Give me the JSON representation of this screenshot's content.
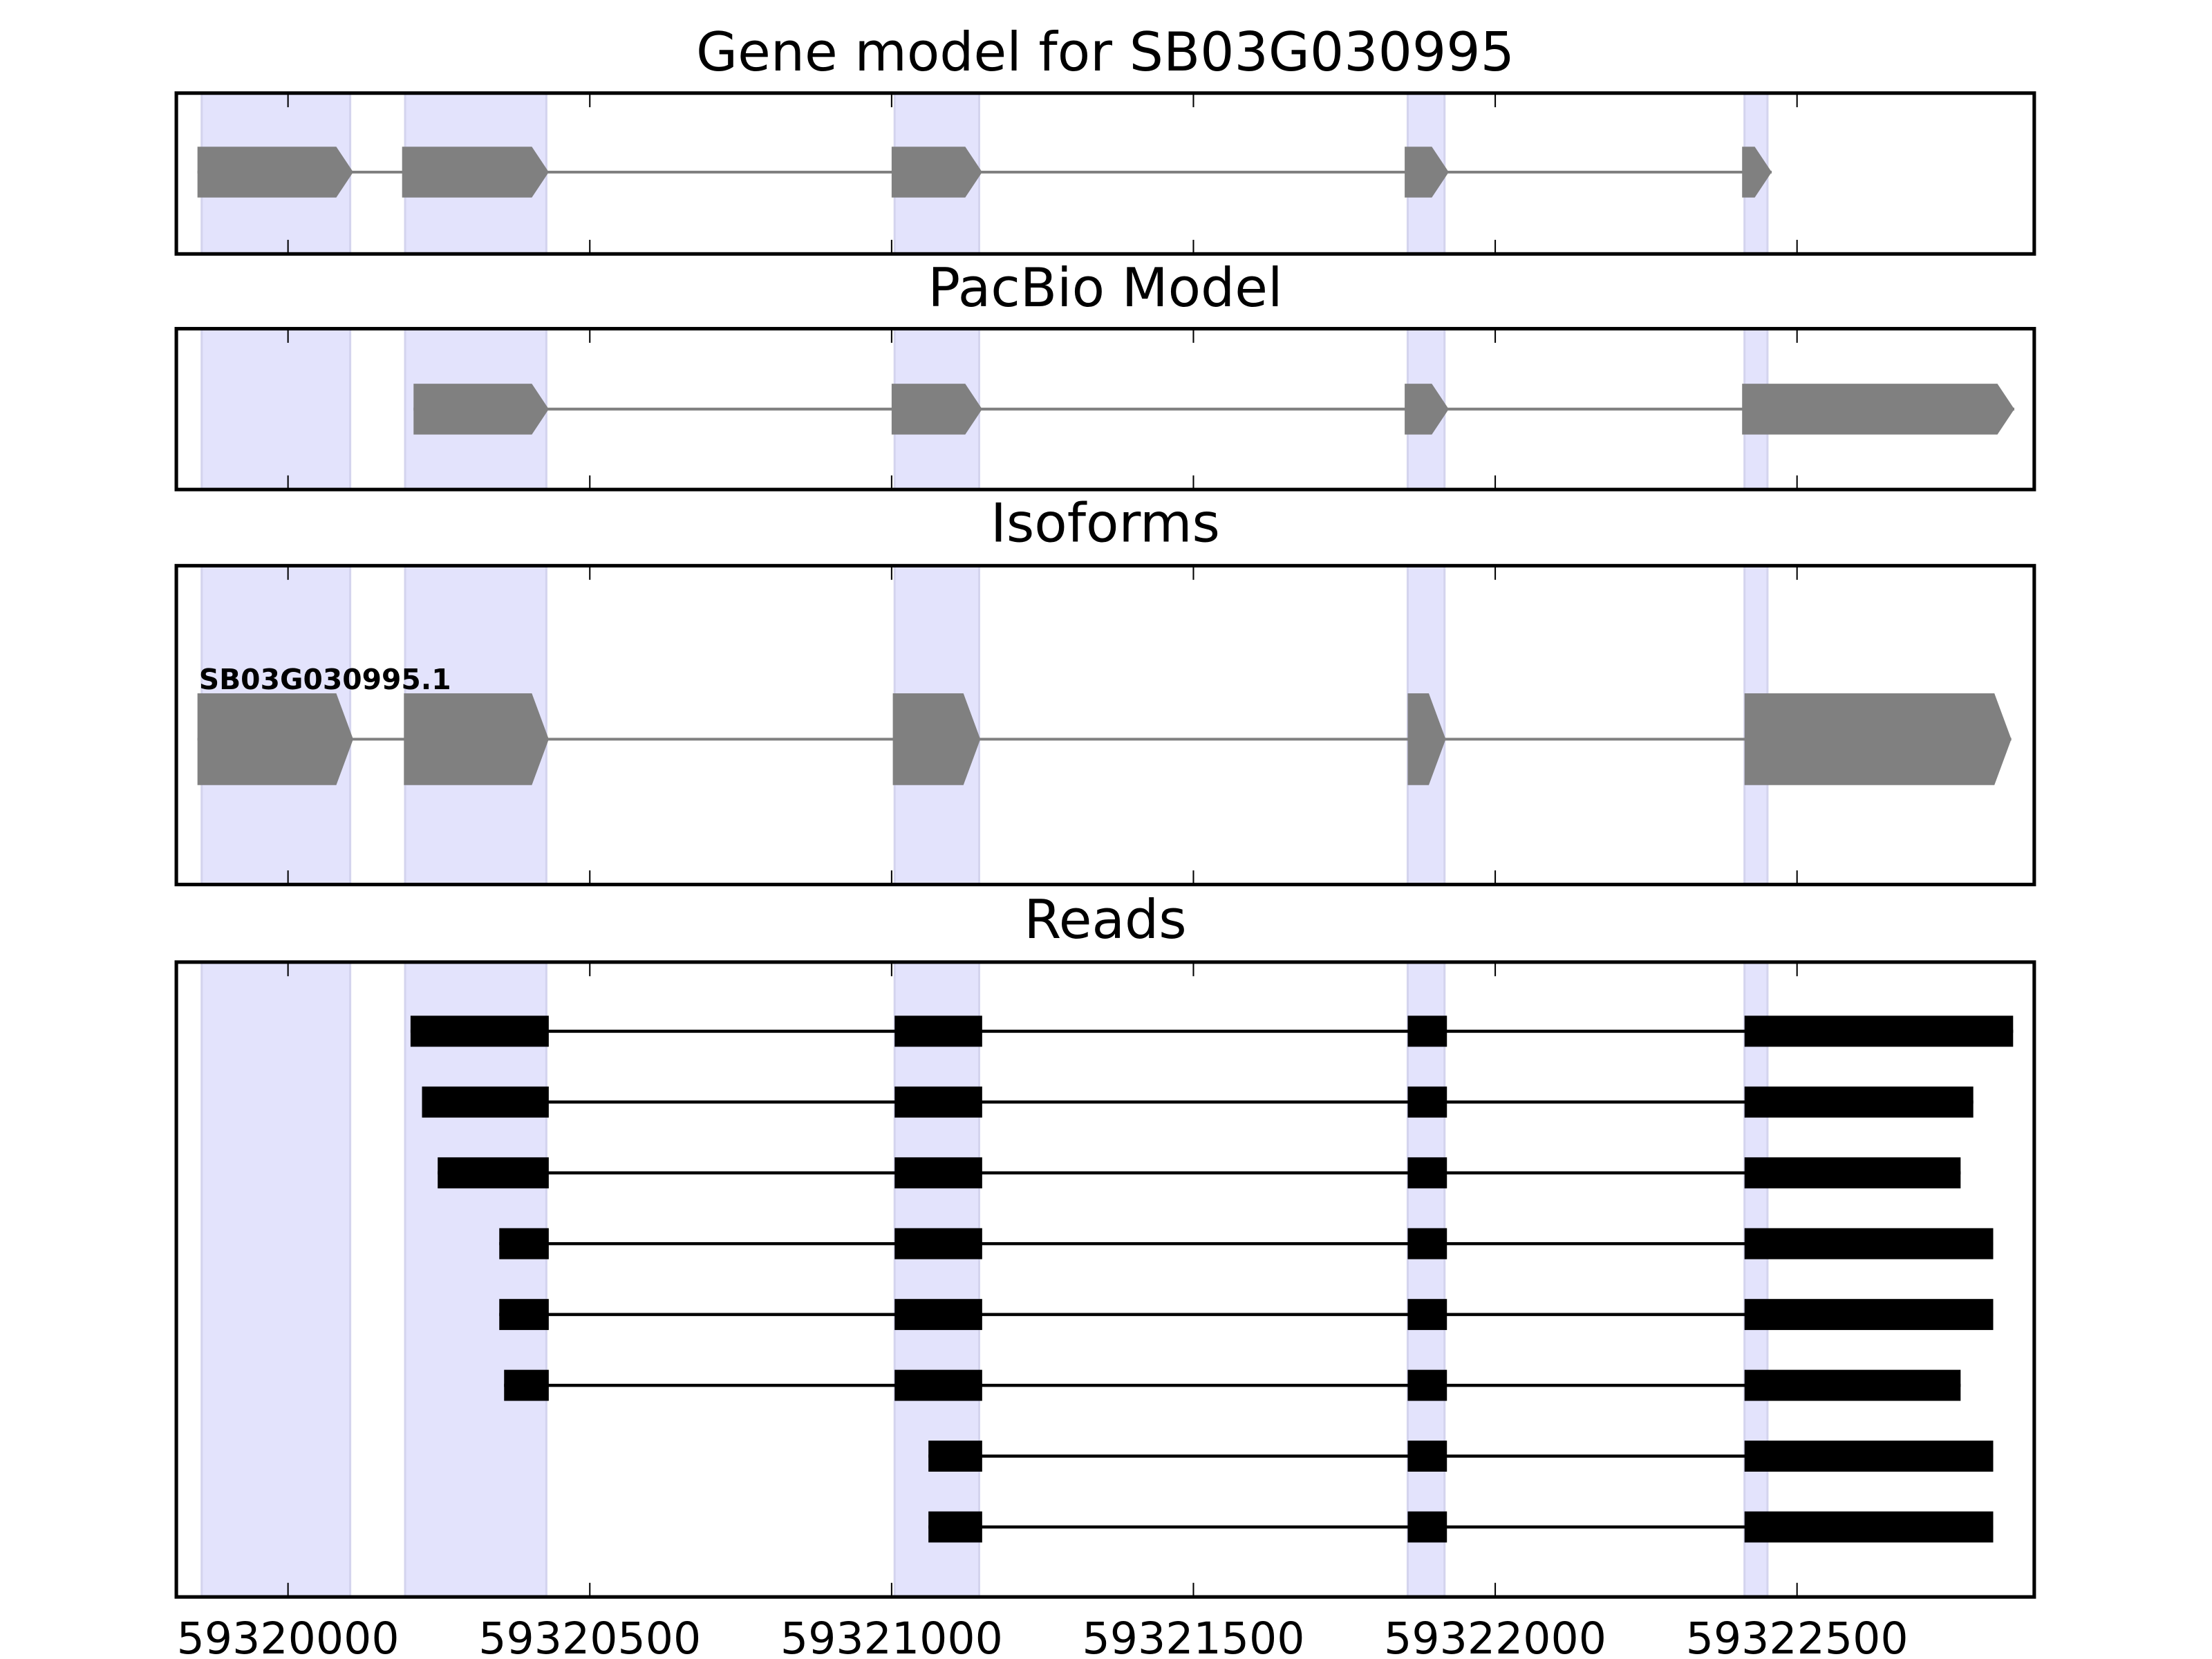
{
  "chart_data": {
    "type": "bar",
    "title": "Gene model for SB03G030995",
    "xlabel": "",
    "ylabel": "",
    "xlim": [
      59319815,
      59322893
    ],
    "xticks": [
      59320000,
      59320500,
      59321000,
      59321500,
      59322000,
      59322500
    ],
    "xtick_labels": [
      "59320000",
      "59320500",
      "59321000",
      "59321500",
      "59322000",
      "59322500"
    ],
    "grid": false,
    "highlight_color": "#e3e3fc",
    "feature_color": "#808080",
    "read_color": "#000000",
    "highlight_regions": [
      [
        59319857,
        59320103
      ],
      [
        59320194,
        59320428
      ],
      [
        59321005,
        59321145
      ],
      [
        59321855,
        59321916
      ],
      [
        59322413,
        59322451
      ]
    ],
    "panels": [
      {
        "title": "Gene model for SB03G030995",
        "kind": "model",
        "exons": [
          [
            59319850,
            59320108
          ],
          [
            59320189,
            59320432
          ],
          [
            59321000,
            59321150
          ],
          [
            59321850,
            59321923
          ],
          [
            59322409,
            59322458
          ]
        ]
      },
      {
        "title": "PacBio Model",
        "kind": "model",
        "exons": [
          [
            59320208,
            59320432
          ],
          [
            59321000,
            59321150
          ],
          [
            59321850,
            59321923
          ],
          [
            59322409,
            59322860
          ]
        ]
      },
      {
        "title": "Isoforms",
        "kind": "isoform",
        "label": "SB03G030995.1",
        "exons": [
          [
            59319850,
            59320108
          ],
          [
            59320192,
            59320432
          ],
          [
            59321002,
            59321147
          ],
          [
            59321855,
            59321918
          ],
          [
            59322413,
            59322855
          ]
        ]
      },
      {
        "title": "Reads",
        "kind": "reads",
        "reads": [
          [
            [
              59320203,
              59320432
            ],
            [
              59321005,
              59321150
            ],
            [
              59321855,
              59321920
            ],
            [
              59322413,
              59322858
            ]
          ],
          [
            [
              59320222,
              59320432
            ],
            [
              59321005,
              59321150
            ],
            [
              59321855,
              59321920
            ],
            [
              59322413,
              59322792
            ]
          ],
          [
            [
              59320248,
              59320432
            ],
            [
              59321005,
              59321150
            ],
            [
              59321855,
              59321920
            ],
            [
              59322413,
              59322771
            ]
          ],
          [
            [
              59320350,
              59320432
            ],
            [
              59321005,
              59321150
            ],
            [
              59321855,
              59321920
            ],
            [
              59322413,
              59322825
            ]
          ],
          [
            [
              59320350,
              59320432
            ],
            [
              59321005,
              59321150
            ],
            [
              59321855,
              59321920
            ],
            [
              59322413,
              59322825
            ]
          ],
          [
            [
              59320358,
              59320432
            ],
            [
              59321005,
              59321150
            ],
            [
              59321855,
              59321920
            ],
            [
              59322413,
              59322771
            ]
          ],
          [
            [
              59321061,
              59321150
            ],
            [
              59321855,
              59321920
            ],
            [
              59322413,
              59322825
            ]
          ],
          [
            [
              59321061,
              59321150
            ],
            [
              59321855,
              59321920
            ],
            [
              59322413,
              59322825
            ]
          ]
        ]
      }
    ]
  }
}
